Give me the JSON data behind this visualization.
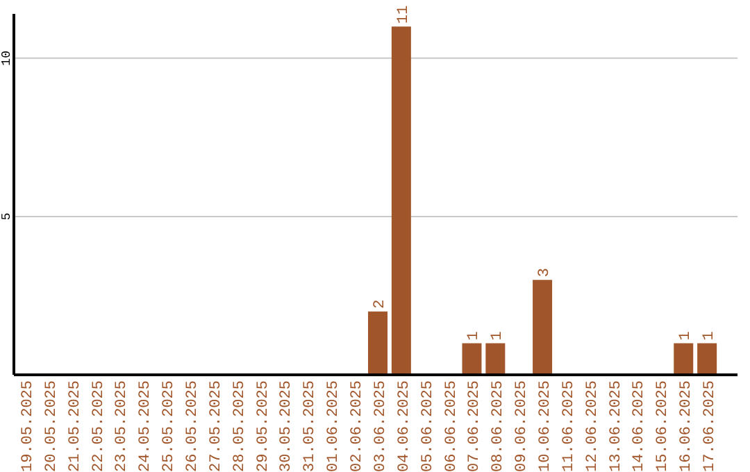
{
  "chart_data": {
    "type": "bar",
    "categories": [
      "19.05.2025",
      "20.05.2025",
      "21.05.2025",
      "22.05.2025",
      "23.05.2025",
      "24.05.2025",
      "25.05.2025",
      "26.05.2025",
      "27.05.2025",
      "28.05.2025",
      "29.05.2025",
      "30.05.2025",
      "31.05.2025",
      "01.06.2025",
      "02.06.2025",
      "03.06.2025",
      "04.06.2025",
      "05.06.2025",
      "06.06.2025",
      "07.06.2025",
      "08.06.2025",
      "09.06.2025",
      "10.06.2025",
      "11.06.2025",
      "12.06.2025",
      "13.06.2025",
      "14.06.2025",
      "15.06.2025",
      "16.06.2025",
      "17.06.2025"
    ],
    "values": [
      0,
      0,
      0,
      0,
      0,
      0,
      0,
      0,
      0,
      0,
      0,
      0,
      0,
      0,
      0,
      2,
      11,
      0,
      0,
      1,
      1,
      0,
      3,
      0,
      0,
      0,
      0,
      0,
      1,
      1
    ],
    "value_labels": [
      null,
      null,
      null,
      null,
      null,
      null,
      null,
      null,
      null,
      null,
      null,
      null,
      null,
      null,
      null,
      "2",
      "11",
      null,
      null,
      "1",
      "1",
      null,
      "3",
      null,
      null,
      null,
      null,
      null,
      "1",
      "1"
    ],
    "color": "#a0562a",
    "ylim": [
      0,
      11.4
    ],
    "yticks": [
      5,
      10
    ],
    "grid": "y"
  }
}
